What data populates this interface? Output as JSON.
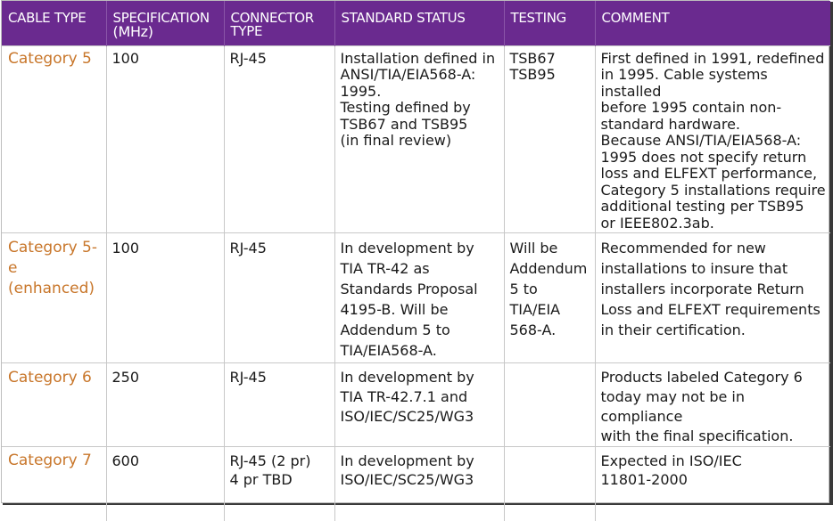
{
  "headers": {
    "cable_type": "CABLE TYPE",
    "specification": "SPECIFICATION",
    "specification_unit": "(MHz)",
    "connector_type": "CONNECTOR\nTYPE",
    "standard_status": "STANDARD STATUS",
    "testing": "TESTING",
    "comment": "COMMENT"
  },
  "rows": [
    {
      "cable_type": "Category 5",
      "specification": "100",
      "connector_type": "RJ-45",
      "standard_status": "Installation defined in\nANSI/TIA/EIA568-A:\n1995.\nTesting defined by\nTSB67 and TSB95\n(in final review)",
      "testing": "TSB67\nTSB95",
      "comment": "First defined in 1991, redefined\nin 1995. Cable systems installed\nbefore 1995 contain non-\nstandard hardware.\nBecause ANSI/TIA/EIA568-A:\n1995 does not specify return\nloss and ELFEXT performance,\nCategory 5 installations require\nadditional testing per TSB95\nor IEEE802.3ab."
    },
    {
      "cable_type": "Category 5-e\n(enhanced)",
      "specification": "100",
      "connector_type": "RJ-45",
      "standard_status": "In development by\nTIA TR-42 as\nStandards Proposal\n4195-B. Will be\nAddendum 5 to\nTIA/EIA568-A.",
      "testing": "Will be\nAddendum\n5 to\nTIA/EIA\n568-A.",
      "comment": "Recommended for new\ninstallations to insure that\ninstallers incorporate Return\nLoss and ELFEXT requirements\nin their certification."
    },
    {
      "cable_type": "Category 6",
      "specification": "250",
      "connector_type": "RJ-45",
      "standard_status": "In development by\nTIA TR-42.7.1 and\nISO/IEC/SC25/WG3",
      "testing": "",
      "comment": "Products labeled Category 6\ntoday may not be in compliance\nwith the final specification."
    },
    {
      "cable_type": "Category 7",
      "specification": "600",
      "connector_type": "RJ-45 (2 pr)\n4 pr TBD",
      "standard_status": "In development by\nISO/IEC/SC25/WG3",
      "testing": "",
      "comment": "Expected in ISO/IEC\n11801-2000"
    }
  ],
  "colors": {
    "header_bg": "#6a2a8f",
    "header_text": "#ffffff",
    "cable_type_text": "#c8762a",
    "body_text": "#1a1a1a"
  }
}
